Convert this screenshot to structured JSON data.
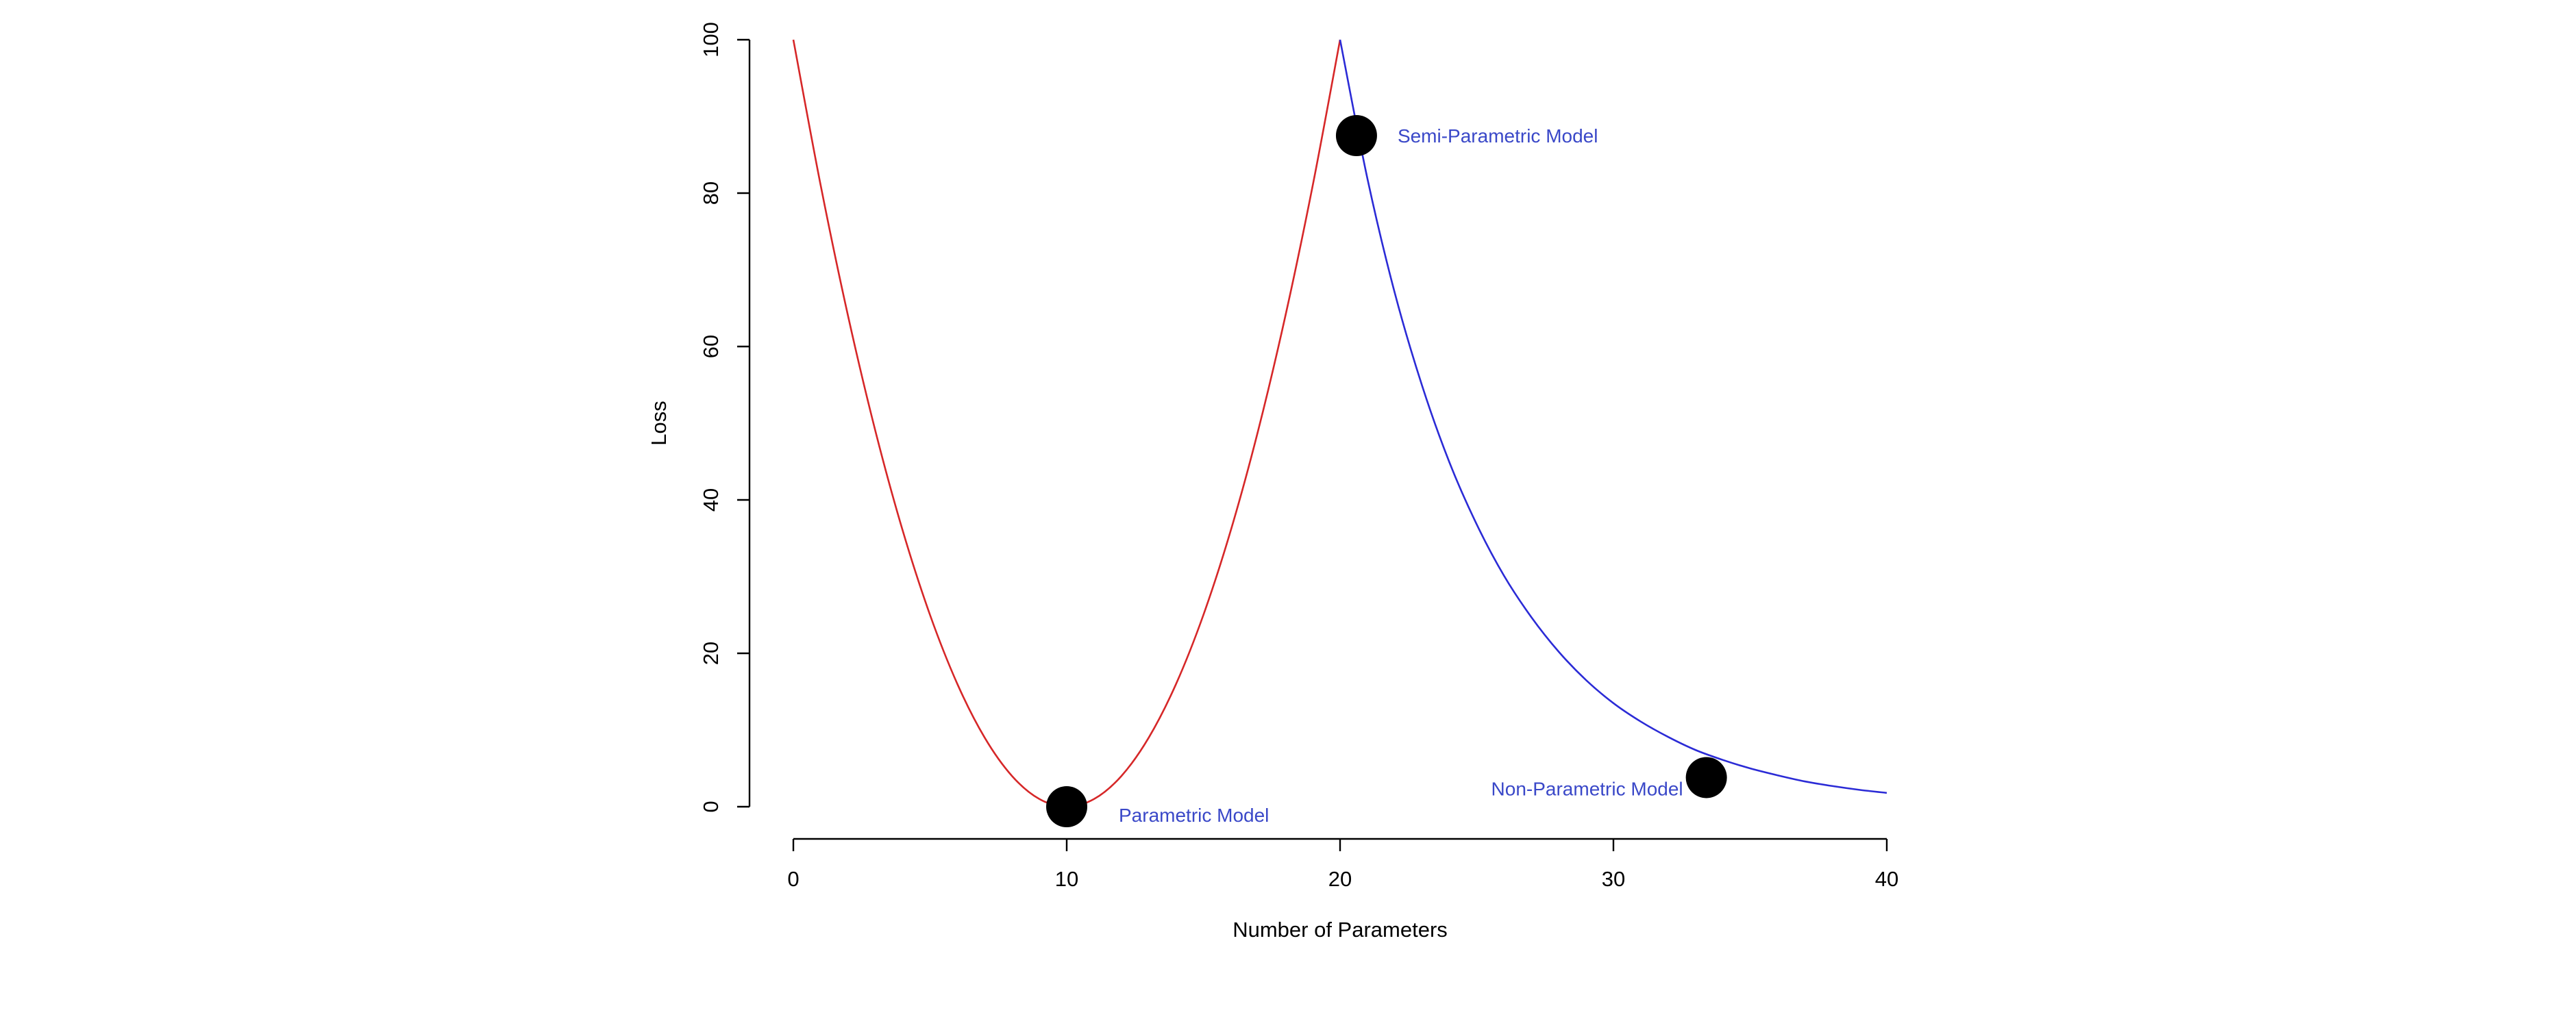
{
  "chart_data": {
    "type": "line",
    "xlabel": "Number of Parameters",
    "ylabel": "Loss",
    "xlim": [
      0,
      40
    ],
    "ylim": [
      0,
      100
    ],
    "x_ticks": [
      0,
      10,
      20,
      30,
      40
    ],
    "y_ticks": [
      0,
      20,
      40,
      60,
      80,
      100
    ],
    "grid": false,
    "series": [
      {
        "color": "#d62728",
        "x": [
          0,
          1,
          2,
          3,
          4,
          5,
          6,
          7,
          8,
          9,
          10,
          11,
          12,
          13,
          14,
          15,
          16,
          17,
          18,
          19,
          20
        ],
        "y": [
          100,
          81,
          64,
          49,
          36,
          25,
          16,
          9,
          4,
          1,
          0,
          1,
          4,
          9,
          16,
          25,
          36,
          49,
          64,
          81,
          100
        ]
      },
      {
        "color": "#2b2bd6",
        "x": [
          20,
          21,
          22,
          23,
          24,
          25,
          26,
          27,
          28,
          29,
          30,
          31,
          32,
          33,
          34,
          35,
          36,
          37,
          38,
          39,
          40
        ],
        "y": [
          100,
          81.9,
          67.0,
          54.9,
          44.9,
          36.8,
          30.1,
          24.7,
          20.2,
          16.5,
          13.5,
          11.1,
          9.1,
          7.4,
          6.1,
          5.0,
          4.1,
          3.3,
          2.7,
          2.2,
          1.8
        ]
      }
    ],
    "points": [
      {
        "label": "Parametric Model",
        "x": 10,
        "y": 0,
        "color": "#000000"
      },
      {
        "label": "Semi-Parametric Model",
        "x": 20.6,
        "y": 87.5,
        "color": "#000000"
      },
      {
        "label": "Non-Parametric Model",
        "x": 33.4,
        "y": 3.8,
        "color": "#000000"
      }
    ],
    "annotation_color": "#3a48c8"
  }
}
